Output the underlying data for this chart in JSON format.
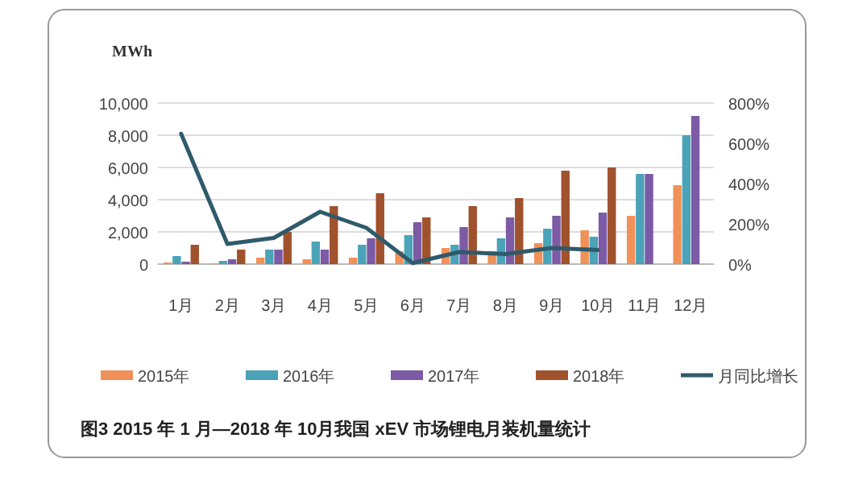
{
  "chart_data": {
    "type": "bar",
    "ylabel": "MWh",
    "annotations": [
      "图3  2015 年 1 月—2018 年 10月我国 xEV 市场锂电月装机量统计"
    ],
    "categories": [
      "1月",
      "2月",
      "3月",
      "4月",
      "5月",
      "6月",
      "7月",
      "8月",
      "9月",
      "10月",
      "11月",
      "12月"
    ],
    "series": [
      {
        "name": "2015年",
        "color": "#f0915a",
        "values": [
          100,
          50,
          400,
          300,
          400,
          800,
          1000,
          800,
          1300,
          2100,
          3000,
          4900
        ]
      },
      {
        "name": "2016年",
        "color": "#4ba3b8",
        "values": [
          500,
          200,
          900,
          1400,
          1200,
          1800,
          1200,
          1600,
          2200,
          1700,
          5600,
          8000
        ]
      },
      {
        "name": "2017年",
        "color": "#7c5aa5",
        "values": [
          150,
          300,
          900,
          900,
          1600,
          2600,
          2300,
          2900,
          3000,
          3200,
          5600,
          9200
        ]
      },
      {
        "name": "2018年",
        "color": "#a0522d",
        "values": [
          1200,
          900,
          2000,
          3600,
          4400,
          2900,
          3600,
          4100,
          5800,
          6000,
          null,
          null
        ]
      },
      {
        "name": "月同比增长",
        "type": "line",
        "axis": "y2",
        "color": "#2f5a6b",
        "values": [
          648,
          100,
          130,
          260,
          180,
          5,
          60,
          50,
          80,
          70,
          null,
          null
        ]
      }
    ],
    "ylim": [
      0,
      10000
    ],
    "yticks": [
      0,
      {
        "value": 2000,
        "label": "2,000"
      },
      {
        "value": 4000,
        "label": "4,000"
      },
      {
        "value": 6000,
        "label": "6,000"
      },
      {
        "value": 8000,
        "label": "8,000"
      },
      {
        "value": 10000,
        "label": "10,000"
      }
    ],
    "y2lim": [
      0,
      800
    ],
    "y2ticks": [
      {
        "value": 0,
        "label": "0%"
      },
      {
        "value": 200,
        "label": "200%"
      },
      {
        "value": 400,
        "label": "400%"
      },
      {
        "value": 600,
        "label": "600%"
      },
      {
        "value": 800,
        "label": "800%"
      }
    ],
    "grid": "y",
    "legend": "bottom",
    "marker": "none",
    "line_style": "solid"
  }
}
